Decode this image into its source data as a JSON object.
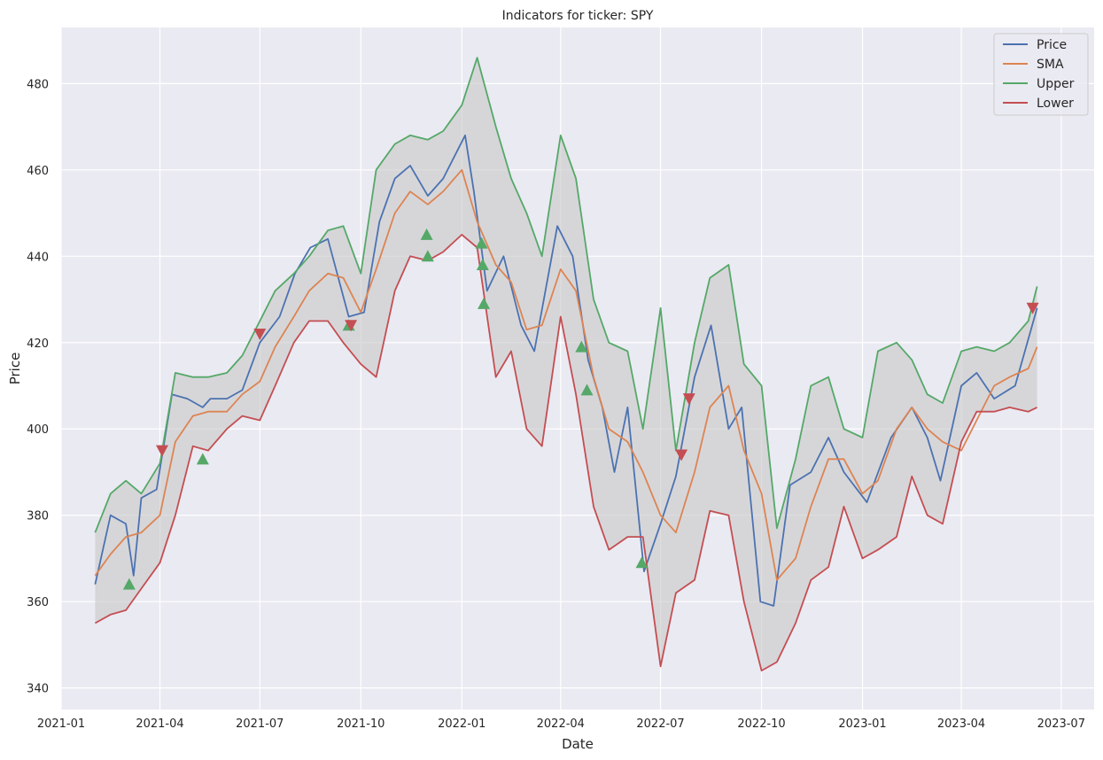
{
  "chart_data": {
    "type": "line",
    "title": "Indicators for ticker: SPY",
    "xlabel": "Date",
    "ylabel": "Price",
    "xlim": [
      "2021-01-01",
      "2023-07-31"
    ],
    "ylim": [
      335,
      493
    ],
    "x_ticks": [
      "2021-01-01",
      "2021-04-01",
      "2021-07-01",
      "2021-10-01",
      "2022-01-01",
      "2022-04-01",
      "2022-07-01",
      "2022-10-01",
      "2023-01-01",
      "2023-04-01",
      "2023-07-01"
    ],
    "x_tick_labels": [
      "2021-01",
      "2021-04",
      "2021-07",
      "2021-10",
      "2022-01",
      "2022-04",
      "2022-07",
      "2022-10",
      "2023-01",
      "2023-04",
      "2023-07"
    ],
    "y_ticks": [
      340,
      360,
      380,
      400,
      420,
      440,
      460,
      480
    ],
    "y_tick_labels": [
      "340",
      "360",
      "380",
      "400",
      "420",
      "440",
      "460",
      "480"
    ],
    "grid": true,
    "legend_position": "top-right",
    "band_fill_color": "#c8c8c8",
    "series": [
      {
        "name": "Price",
        "color": "#4c72b0",
        "x": [
          "2021-02-01",
          "2021-02-15",
          "2021-03-01",
          "2021-03-08",
          "2021-03-15",
          "2021-03-29",
          "2021-04-12",
          "2021-04-26",
          "2021-05-10",
          "2021-05-17",
          "2021-06-01",
          "2021-06-15",
          "2021-07-01",
          "2021-07-19",
          "2021-08-02",
          "2021-08-16",
          "2021-09-01",
          "2021-09-20",
          "2021-10-04",
          "2021-10-18",
          "2021-11-01",
          "2021-11-15",
          "2021-12-01",
          "2021-12-15",
          "2022-01-04",
          "2022-01-12",
          "2022-01-24",
          "2022-02-08",
          "2022-02-24",
          "2022-03-08",
          "2022-03-29",
          "2022-04-12",
          "2022-04-26",
          "2022-05-09",
          "2022-05-20",
          "2022-06-01",
          "2022-06-16",
          "2022-07-01",
          "2022-07-15",
          "2022-08-01",
          "2022-08-16",
          "2022-09-01",
          "2022-09-13",
          "2022-09-30",
          "2022-10-12",
          "2022-10-27",
          "2022-11-15",
          "2022-12-01",
          "2022-12-15",
          "2023-01-05",
          "2023-01-27",
          "2023-02-15",
          "2023-03-01",
          "2023-03-13",
          "2023-04-01",
          "2023-04-15",
          "2023-05-01",
          "2023-05-20",
          "2023-06-09"
        ],
        "y": [
          364,
          380,
          378,
          366,
          384,
          386,
          408,
          407,
          405,
          407,
          407,
          409,
          420,
          426,
          436,
          442,
          444,
          426,
          427,
          448,
          458,
          461,
          454,
          458,
          468,
          455,
          432,
          440,
          424,
          418,
          447,
          440,
          416,
          405,
          390,
          405,
          367,
          378,
          389,
          412,
          424,
          400,
          405,
          360,
          359,
          387,
          390,
          398,
          390,
          383,
          398,
          405,
          398,
          388,
          410,
          413,
          407,
          410,
          428
        ]
      },
      {
        "name": "SMA",
        "color": "#dd8452",
        "x": [
          "2021-02-01",
          "2021-02-15",
          "2021-03-01",
          "2021-03-15",
          "2021-04-01",
          "2021-04-15",
          "2021-05-01",
          "2021-05-15",
          "2021-06-01",
          "2021-06-15",
          "2021-07-01",
          "2021-07-15",
          "2021-08-01",
          "2021-08-15",
          "2021-09-01",
          "2021-09-15",
          "2021-10-01",
          "2021-10-15",
          "2021-11-01",
          "2021-11-15",
          "2021-12-01",
          "2021-12-15",
          "2022-01-01",
          "2022-01-15",
          "2022-02-01",
          "2022-02-15",
          "2022-03-01",
          "2022-03-15",
          "2022-04-01",
          "2022-04-15",
          "2022-05-01",
          "2022-05-15",
          "2022-06-01",
          "2022-06-15",
          "2022-07-01",
          "2022-07-15",
          "2022-08-01",
          "2022-08-15",
          "2022-09-01",
          "2022-09-15",
          "2022-10-01",
          "2022-10-15",
          "2022-11-01",
          "2022-11-15",
          "2022-12-01",
          "2022-12-15",
          "2023-01-01",
          "2023-01-15",
          "2023-02-01",
          "2023-02-15",
          "2023-03-01",
          "2023-03-15",
          "2023-04-01",
          "2023-04-15",
          "2023-05-01",
          "2023-05-15",
          "2023-06-01",
          "2023-06-09"
        ],
        "y": [
          366,
          371,
          375,
          376,
          380,
          397,
          403,
          404,
          404,
          408,
          411,
          419,
          426,
          432,
          436,
          435,
          427,
          437,
          450,
          455,
          452,
          455,
          460,
          448,
          438,
          434,
          423,
          424,
          437,
          432,
          412,
          400,
          397,
          390,
          380,
          376,
          390,
          405,
          410,
          395,
          385,
          365,
          370,
          382,
          393,
          393,
          385,
          388,
          400,
          405,
          400,
          397,
          395,
          402,
          410,
          412,
          414,
          419
        ]
      },
      {
        "name": "Upper",
        "color": "#55a868",
        "x": [
          "2021-02-01",
          "2021-02-15",
          "2021-03-01",
          "2021-03-15",
          "2021-04-01",
          "2021-04-15",
          "2021-05-01",
          "2021-05-15",
          "2021-06-01",
          "2021-06-15",
          "2021-07-01",
          "2021-07-15",
          "2021-08-01",
          "2021-08-15",
          "2021-09-01",
          "2021-09-15",
          "2021-10-01",
          "2021-10-15",
          "2021-11-01",
          "2021-11-15",
          "2021-12-01",
          "2021-12-15",
          "2022-01-01",
          "2022-01-15",
          "2022-02-01",
          "2022-02-15",
          "2022-03-01",
          "2022-03-15",
          "2022-04-01",
          "2022-04-15",
          "2022-05-01",
          "2022-05-15",
          "2022-06-01",
          "2022-06-15",
          "2022-07-01",
          "2022-07-15",
          "2022-08-01",
          "2022-08-15",
          "2022-09-01",
          "2022-09-15",
          "2022-10-01",
          "2022-10-15",
          "2022-11-01",
          "2022-11-15",
          "2022-12-01",
          "2022-12-15",
          "2023-01-01",
          "2023-01-15",
          "2023-02-01",
          "2023-02-15",
          "2023-03-01",
          "2023-03-15",
          "2023-04-01",
          "2023-04-15",
          "2023-05-01",
          "2023-05-15",
          "2023-06-01",
          "2023-06-09"
        ],
        "y": [
          376,
          385,
          388,
          385,
          392,
          413,
          412,
          412,
          413,
          417,
          425,
          432,
          436,
          440,
          446,
          447,
          436,
          460,
          466,
          468,
          467,
          469,
          475,
          486,
          470,
          458,
          450,
          440,
          468,
          458,
          430,
          420,
          418,
          400,
          428,
          395,
          420,
          435,
          438,
          415,
          410,
          377,
          393,
          410,
          412,
          400,
          398,
          418,
          420,
          416,
          408,
          406,
          418,
          419,
          418,
          420,
          425,
          433
        ]
      },
      {
        "name": "Lower",
        "color": "#c44e52",
        "x": [
          "2021-02-01",
          "2021-02-15",
          "2021-03-01",
          "2021-03-15",
          "2021-04-01",
          "2021-04-15",
          "2021-05-01",
          "2021-05-15",
          "2021-06-01",
          "2021-06-15",
          "2021-07-01",
          "2021-07-15",
          "2021-08-01",
          "2021-08-15",
          "2021-09-01",
          "2021-09-15",
          "2021-10-01",
          "2021-10-15",
          "2021-11-01",
          "2021-11-15",
          "2021-12-01",
          "2021-12-15",
          "2022-01-01",
          "2022-01-15",
          "2022-02-01",
          "2022-02-15",
          "2022-03-01",
          "2022-03-15",
          "2022-04-01",
          "2022-04-15",
          "2022-05-01",
          "2022-05-15",
          "2022-06-01",
          "2022-06-15",
          "2022-07-01",
          "2022-07-15",
          "2022-08-01",
          "2022-08-15",
          "2022-09-01",
          "2022-09-15",
          "2022-10-01",
          "2022-10-15",
          "2022-11-01",
          "2022-11-15",
          "2022-12-01",
          "2022-12-15",
          "2023-01-01",
          "2023-01-15",
          "2023-02-01",
          "2023-02-15",
          "2023-03-01",
          "2023-03-15",
          "2023-04-01",
          "2023-04-15",
          "2023-05-01",
          "2023-05-15",
          "2023-06-01",
          "2023-06-09"
        ],
        "y": [
          355,
          357,
          358,
          363,
          369,
          380,
          396,
          395,
          400,
          403,
          402,
          410,
          420,
          425,
          425,
          420,
          415,
          412,
          432,
          440,
          439,
          441,
          445,
          442,
          412,
          418,
          400,
          396,
          426,
          408,
          382,
          372,
          375,
          375,
          345,
          362,
          365,
          381,
          380,
          360,
          344,
          346,
          355,
          365,
          368,
          382,
          370,
          372,
          375,
          389,
          380,
          378,
          397,
          404,
          404,
          405,
          404,
          405
        ]
      }
    ],
    "buy_markers": {
      "color": "#55a868",
      "marker": "triangle-up",
      "x": [
        "2021-03-04",
        "2021-05-10",
        "2021-09-20",
        "2021-11-30",
        "2021-12-01",
        "2022-01-19",
        "2022-01-20",
        "2022-01-21",
        "2022-04-20",
        "2022-04-25",
        "2022-06-14"
      ],
      "y": [
        364,
        393,
        424,
        445,
        440,
        443,
        438,
        429,
        419,
        409,
        369
      ]
    },
    "sell_markers": {
      "color": "#c44e52",
      "marker": "triangle-down",
      "x": [
        "2021-04-03",
        "2021-07-01",
        "2021-09-22",
        "2022-07-20",
        "2022-07-27",
        "2023-06-05"
      ],
      "y": [
        395,
        422,
        424,
        394,
        407,
        428
      ]
    }
  }
}
